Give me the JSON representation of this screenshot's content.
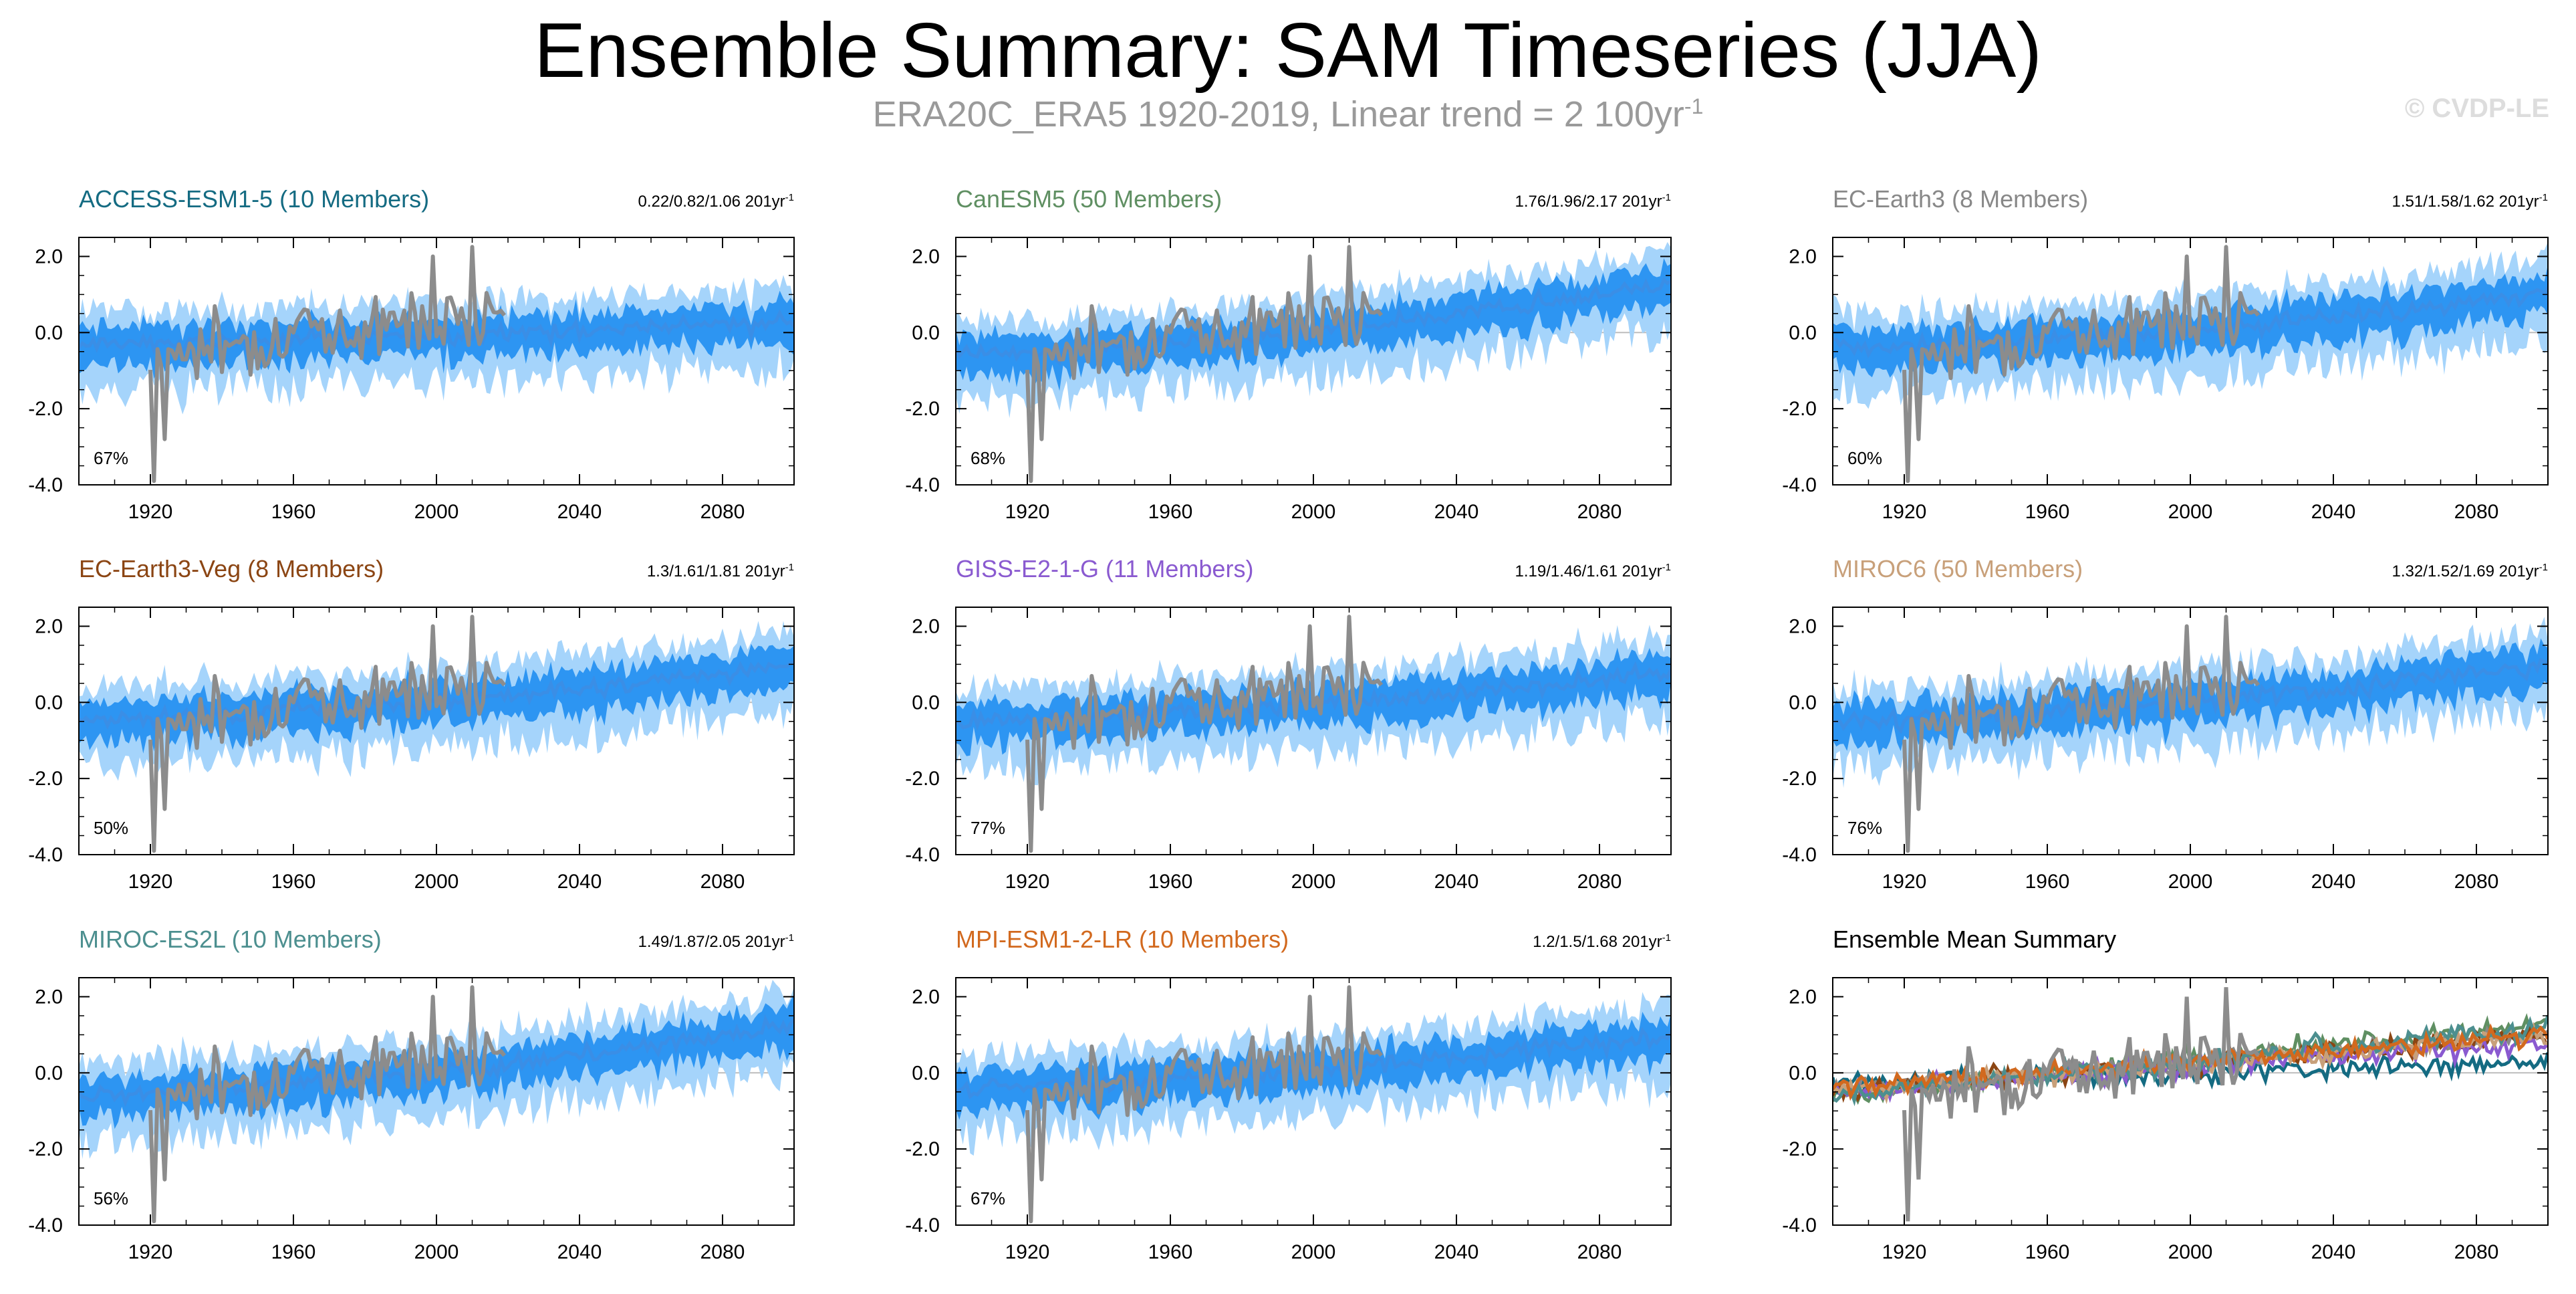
{
  "title": "Ensemble Summary: SAM Timeseries (JJA)",
  "subtitle": "ERA20C_ERA5 1920-2019, Linear trend = 2 100yr",
  "subtitle_exp": "-1",
  "watermark": "© CVDP-LE",
  "trend_unit": "201yr",
  "trend_exp": "-1",
  "colors": {
    "obs": "#8c8c8c",
    "spread_outer": "#a5d4fb",
    "spread_inner": "#2d95f2",
    "mean": "#3a8ee6"
  },
  "chart_data": [
    {
      "type": "line",
      "name": "ACCESS-ESM1-5",
      "title": "ACCESS-ESM1-5 (10 Members)",
      "title_color": "#146b82",
      "trend": "0.22/0.82/1.06",
      "pct": "67%",
      "start": -0.3,
      "end": 0.3,
      "seed": 11,
      "xlim": [
        1900,
        2100
      ],
      "ylim": [
        -4,
        2.5
      ],
      "xticks": [
        "1920",
        "1960",
        "2000",
        "2040",
        "2080"
      ],
      "yticks": [
        "2.0",
        "0.0",
        "-2.0",
        "-4.0"
      ]
    },
    {
      "type": "line",
      "name": "CanESM5",
      "title": "CanESM5 (50 Members)",
      "title_color": "#5f8f62",
      "trend": "1.76/1.96/2.17",
      "pct": "68%",
      "start": -0.6,
      "end": 1.3,
      "seed": 23,
      "xlim": [
        1900,
        2100
      ],
      "ylim": [
        -4,
        2.5
      ],
      "xticks": [
        "1920",
        "1960",
        "2000",
        "2040",
        "2080"
      ],
      "yticks": [
        "2.0",
        "0.0",
        "-2.0",
        "-4.0"
      ]
    },
    {
      "type": "line",
      "name": "EC-Earth3",
      "title": "EC-Earth3 (8 Members)",
      "title_color": "#888888",
      "trend": "1.51/1.58/1.62",
      "pct": "60%",
      "start": -0.4,
      "end": 1.0,
      "seed": 37,
      "xlim": [
        1900,
        2100
      ],
      "ylim": [
        -4,
        2.5
      ],
      "xticks": [
        "1920",
        "1960",
        "2000",
        "2040",
        "2080"
      ],
      "yticks": [
        "2.0",
        "0.0",
        "-2.0",
        "-4.0"
      ]
    },
    {
      "type": "line",
      "name": "EC-Earth3-Veg",
      "title": "EC-Earth3-Veg (8 Members)",
      "title_color": "#8b4513",
      "trend": "1.3/1.61/1.81",
      "pct": "50%",
      "start": -0.5,
      "end": 1.0,
      "seed": 41,
      "xlim": [
        1900,
        2100
      ],
      "ylim": [
        -4,
        2.5
      ],
      "xticks": [
        "1920",
        "1960",
        "2000",
        "2040",
        "2080"
      ],
      "yticks": [
        "2.0",
        "0.0",
        "-2.0",
        "-4.0"
      ]
    },
    {
      "type": "line",
      "name": "GISS-E2-1-G",
      "title": "GISS-E2-1-G (11 Members)",
      "title_color": "#8a5ad0",
      "trend": "1.19/1.46/1.61",
      "pct": "77%",
      "start": -0.5,
      "end": 0.8,
      "seed": 53,
      "xlim": [
        1900,
        2100
      ],
      "ylim": [
        -4,
        2.5
      ],
      "xticks": [
        "1920",
        "1960",
        "2000",
        "2040",
        "2080"
      ],
      "yticks": [
        "2.0",
        "0.0",
        "-2.0",
        "-4.0"
      ]
    },
    {
      "type": "line",
      "name": "MIROC6",
      "title": "MIROC6 (50 Members)",
      "title_color": "#c8a07a",
      "trend": "1.32/1.52/1.69",
      "pct": "76%",
      "start": -0.5,
      "end": 1.0,
      "seed": 67,
      "xlim": [
        1900,
        2100
      ],
      "ylim": [
        -4,
        2.5
      ],
      "xticks": [
        "1920",
        "1960",
        "2000",
        "2040",
        "2080"
      ],
      "yticks": [
        "2.0",
        "0.0",
        "-2.0",
        "-4.0"
      ]
    },
    {
      "type": "line",
      "name": "MIROC-ES2L",
      "title": "MIROC-ES2L (10 Members)",
      "title_color": "#4c8f8f",
      "trend": "1.49/1.87/2.05",
      "pct": "56%",
      "start": -0.6,
      "end": 1.2,
      "seed": 79,
      "xlim": [
        1900,
        2100
      ],
      "ylim": [
        -4,
        2.5
      ],
      "xticks": [
        "1920",
        "1960",
        "2000",
        "2040",
        "2080"
      ],
      "yticks": [
        "2.0",
        "0.0",
        "-2.0",
        "-4.0"
      ]
    },
    {
      "type": "line",
      "name": "MPI-ESM1-2-LR",
      "title": "MPI-ESM1-2-LR (10 Members)",
      "title_color": "#d2691e",
      "trend": "1.2/1.5/1.68",
      "pct": "67%",
      "start": -0.4,
      "end": 1.0,
      "seed": 83,
      "xlim": [
        1900,
        2100
      ],
      "ylim": [
        -4,
        2.5
      ],
      "xticks": [
        "1920",
        "1960",
        "2000",
        "2040",
        "2080"
      ],
      "yticks": [
        "2.0",
        "0.0",
        "-2.0",
        "-4.0"
      ]
    },
    {
      "type": "line",
      "name": "Ensemble Mean Summary",
      "title": "Ensemble Mean Summary",
      "title_color": "#000000",
      "summary": true,
      "xlim": [
        1900,
        2100
      ],
      "ylim": [
        -4,
        2.5
      ],
      "xticks": [
        "1920",
        "1960",
        "2000",
        "2040",
        "2080"
      ],
      "yticks": [
        "2.0",
        "0.0",
        "-2.0",
        "-4.0"
      ]
    }
  ]
}
